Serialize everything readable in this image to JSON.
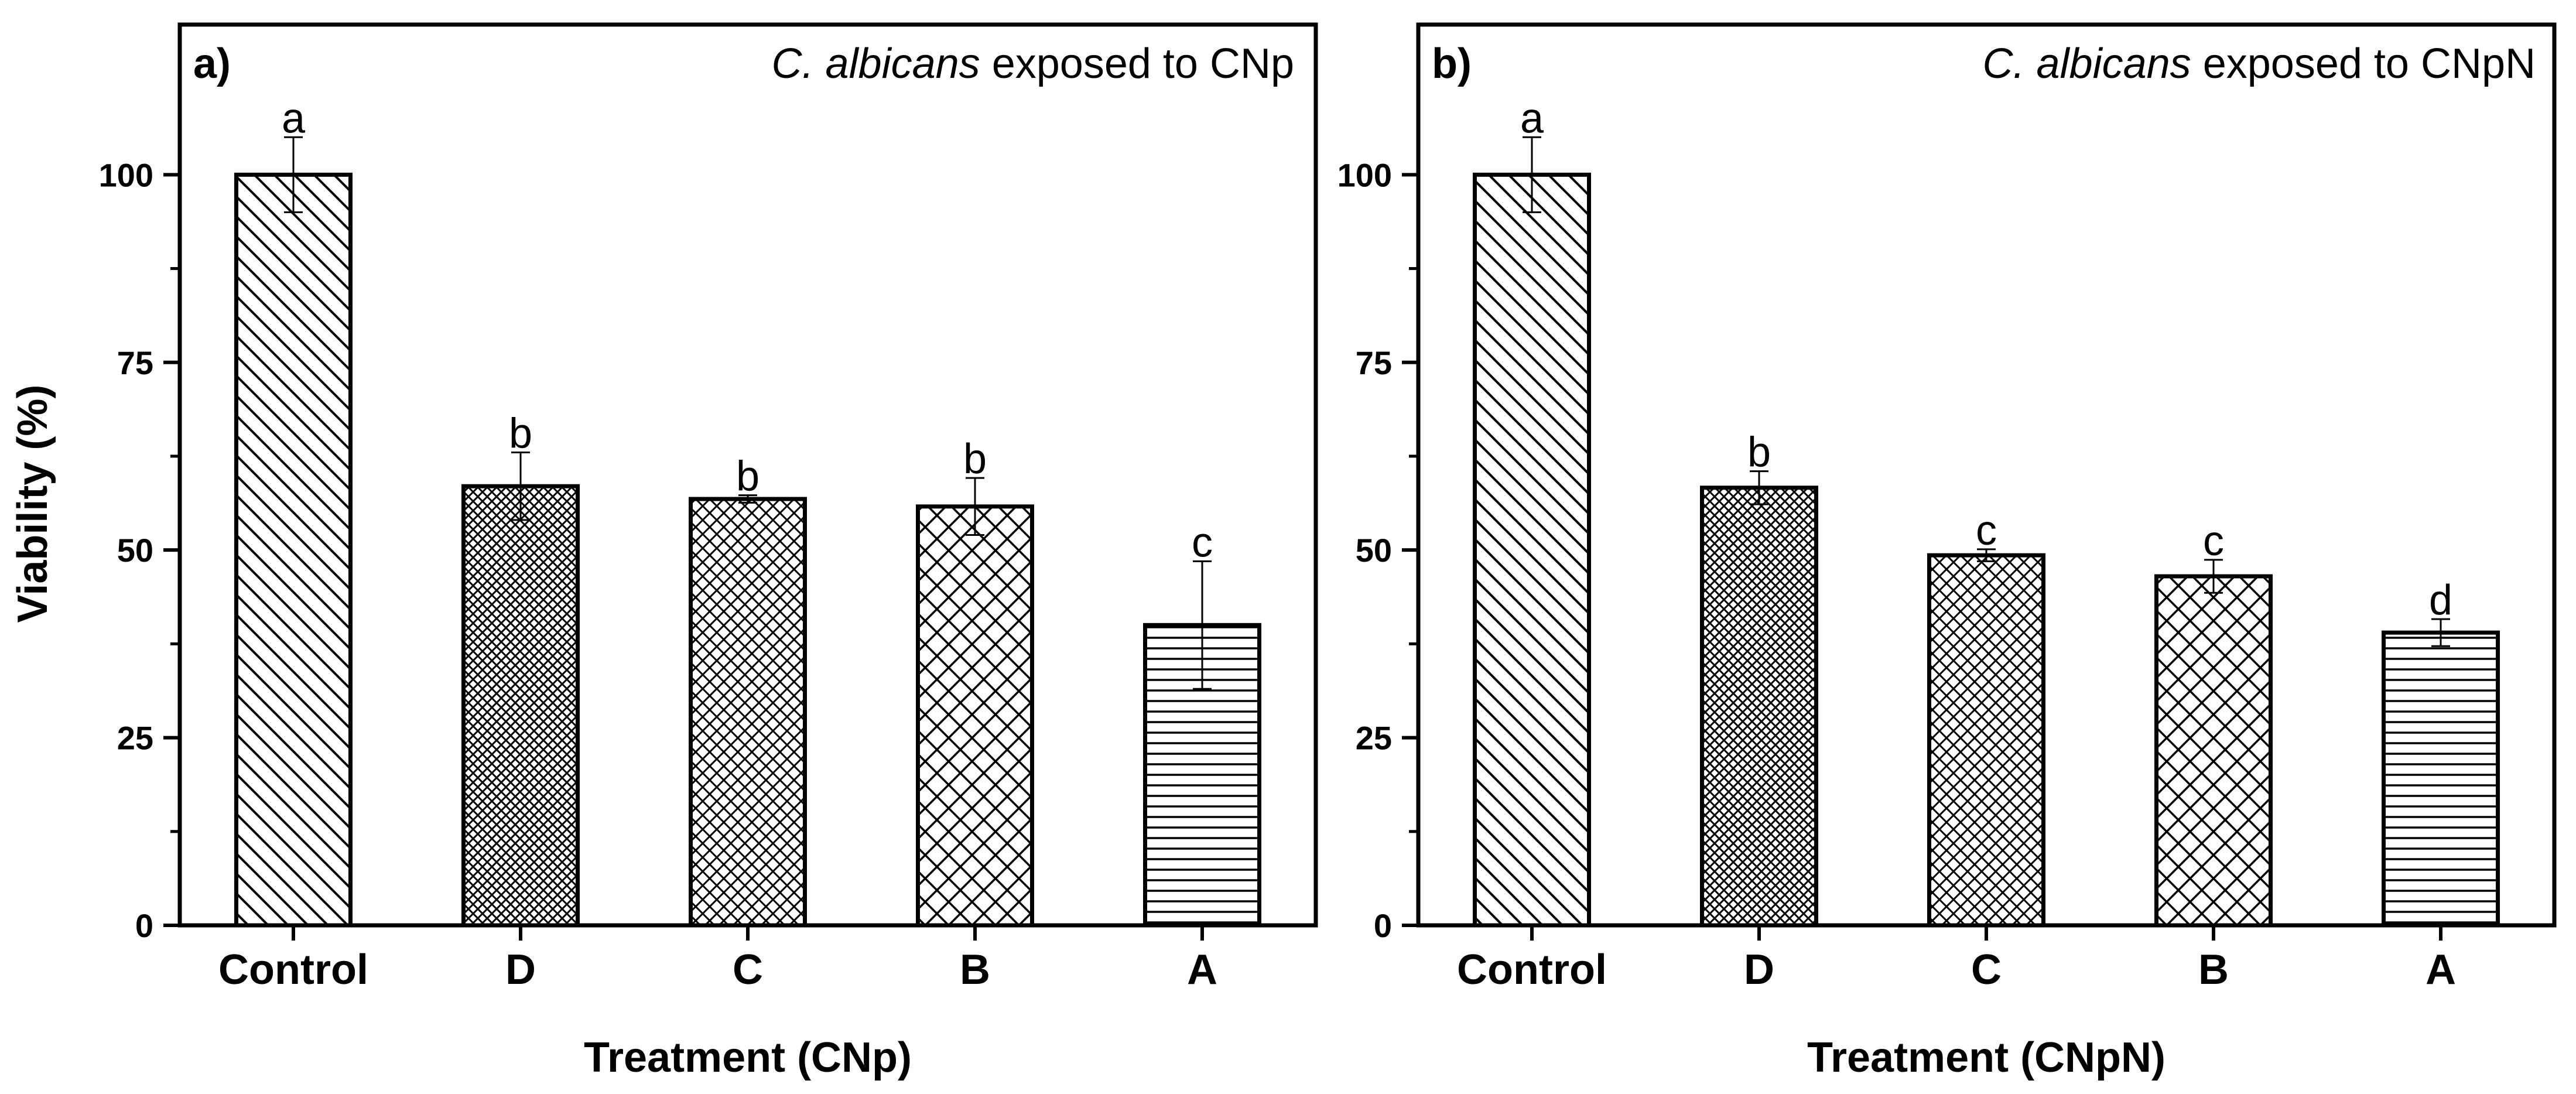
{
  "chart_data": [
    {
      "type": "bar",
      "panel_label": "a)",
      "title_italic": "C. albicans",
      "title_rest": " exposed to CNp",
      "xlabel": "Treatment (CNp)",
      "ylabel": "Viability (%)",
      "ylim": [
        0,
        120
      ],
      "yticks": [
        0,
        25,
        50,
        75,
        100
      ],
      "categories": [
        "Control",
        "D",
        "C",
        "B",
        "A"
      ],
      "values": [
        100,
        58.5,
        56.8,
        55.8,
        40
      ],
      "errors": [
        5,
        4.5,
        0.5,
        3.8,
        8.5
      ],
      "significance": [
        "a",
        "b",
        "b",
        "b",
        "c"
      ],
      "patterns": [
        "diag-sparse",
        "cross-dense",
        "cross-medium",
        "cross-wide",
        "horizontal"
      ]
    },
    {
      "type": "bar",
      "panel_label": "b)",
      "title_italic": "C. albicans",
      "title_rest": " exposed to CNpN",
      "xlabel": "Treatment (CNpN)",
      "ylabel": "",
      "ylim": [
        0,
        120
      ],
      "yticks": [
        0,
        25,
        50,
        75,
        100
      ],
      "categories": [
        "Control",
        "D",
        "C",
        "B",
        "A"
      ],
      "values": [
        100,
        58.3,
        49.3,
        46.5,
        39
      ],
      "errors": [
        5,
        2.2,
        0.8,
        2.2,
        1.8
      ],
      "significance": [
        "a",
        "b",
        "c",
        "c",
        "d"
      ],
      "patterns": [
        "diag-sparse",
        "cross-dense",
        "cross-medium",
        "cross-wide",
        "horizontal"
      ]
    }
  ]
}
